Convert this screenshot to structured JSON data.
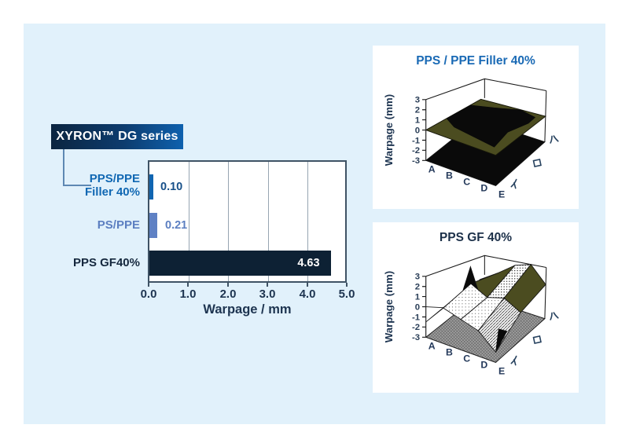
{
  "palette": {
    "page_bg": "#ffffff",
    "panel_bg": "#e1f1fb",
    "badge_gradient_from": "#0b2540",
    "badge_gradient_to": "#0e61ae",
    "connector_line": "#5e88b3",
    "axis_navy": "#1d3450",
    "grid_gray": "#97a5b2",
    "surface_olive": "#4b4c20",
    "surface_black": "#0a0a0a",
    "floor_gray": "#a9a9a9"
  },
  "chart_data": [
    {
      "type": "bar",
      "orientation": "horizontal",
      "series_badge": "XYRON™ DG series",
      "xlabel": "Warpage / mm",
      "xlim": [
        0,
        5
      ],
      "x_ticks": [
        "0.0",
        "1.0",
        "2.0",
        "3.0",
        "4.0",
        "5.0"
      ],
      "grid": true,
      "rows": [
        {
          "label": "PPS/PPE Filler 40%",
          "label_lines": [
            "PPS/PPE",
            "Filler 40%"
          ],
          "value": 0.1,
          "value_label": "0.10",
          "bar_color": "#1065b1",
          "label_color": "#1168b3",
          "value_color": "#175089"
        },
        {
          "label": "PS/PPE",
          "label_lines": [
            "PS/PPE"
          ],
          "value": 0.21,
          "value_label": "0.21",
          "bar_color": "#5f81c4",
          "label_color": "#5c7fc1",
          "value_color": "#5c7fc1"
        },
        {
          "label": "PPS GF40%",
          "label_lines": [
            "PPS GF40%"
          ],
          "value": 4.63,
          "value_label": "4.63",
          "bar_color": "#0d2134",
          "label_color": "#15283e",
          "value_color": "#ffffff"
        }
      ]
    },
    {
      "type": "surface",
      "title": "PPS / PPE Filler 40%",
      "title_color": "#1a6ab5",
      "zlabel": "Warpage (mm)",
      "zlim": [
        -3,
        3
      ],
      "z_ticks": [
        "3",
        "2",
        "1",
        "0",
        "-1",
        "-2",
        "-3"
      ],
      "x_categories": [
        "A",
        "B",
        "C",
        "D",
        "E"
      ],
      "depth_categories": [
        "イ",
        "ロ",
        "ハ"
      ],
      "z_values_estimated": {
        "イ": [
          0,
          0,
          0,
          0,
          0
        ],
        "ロ": [
          0,
          0.1,
          0.1,
          0,
          0
        ],
        "ハ": [
          0,
          0,
          0,
          0.1,
          0
        ]
      }
    },
    {
      "type": "surface",
      "title": "PPS GF 40%",
      "title_color": "#1c3049",
      "zlabel": "Warpage (mm)",
      "zlim": [
        -3,
        3
      ],
      "z_ticks": [
        "3",
        "2",
        "1",
        "0",
        "-1",
        "-2",
        "-3"
      ],
      "x_categories": [
        "A",
        "B",
        "C",
        "D",
        "E"
      ],
      "depth_categories": [
        "イ",
        "ロ",
        "ハ"
      ],
      "z_values_estimated": {
        "イ": [
          -1.5,
          0.5,
          0,
          -0.5,
          -2
        ],
        "ロ": [
          -1,
          1.5,
          0.5,
          1,
          0
        ],
        "ハ": [
          -0.5,
          1,
          2.5,
          3,
          1
        ]
      }
    }
  ]
}
